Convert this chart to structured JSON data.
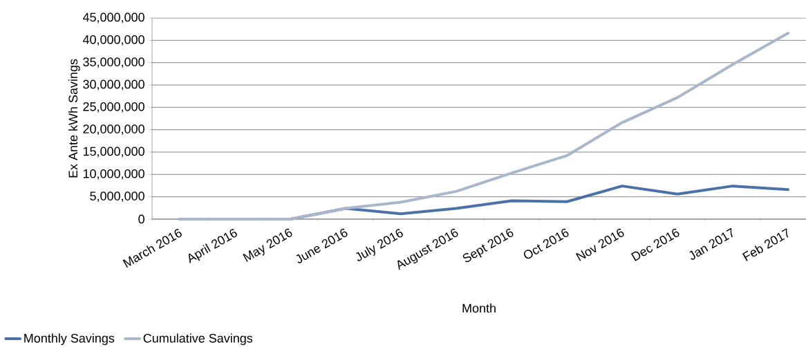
{
  "chart_data": {
    "type": "line",
    "xlabel": "Month",
    "ylabel": "Ex Ante kWh Savings",
    "categories": [
      "March 2016",
      "April 2016",
      "May 2016",
      "June 2016",
      "July 2016",
      "August 2016",
      "Sept 2016",
      "Oct 2016",
      "Nov 2016",
      "Dec 2016",
      "Jan 2017",
      "Feb 2017"
    ],
    "series": [
      {
        "name": "Monthly Savings",
        "color": "#4a72a8",
        "values": [
          0,
          0,
          0,
          2400000,
          1200000,
          2400000,
          4100000,
          3900000,
          7400000,
          5600000,
          7400000,
          6600000
        ]
      },
      {
        "name": "Cumulative Savings",
        "color": "#a9b6cc",
        "values": [
          0,
          0,
          0,
          2400000,
          3800000,
          6200000,
          10300000,
          14200000,
          21600000,
          27200000,
          34600000,
          41600000
        ]
      }
    ],
    "ylim": [
      0,
      45000000
    ],
    "yticks": [
      {
        "value": 0,
        "label": "0"
      },
      {
        "value": 5000000,
        "label": "5,000,000"
      },
      {
        "value": 10000000,
        "label": "10,000,000"
      },
      {
        "value": 15000000,
        "label": "15,000,000"
      },
      {
        "value": 20000000,
        "label": "20,000,000"
      },
      {
        "value": 25000000,
        "label": "25,000,000"
      },
      {
        "value": 30000000,
        "label": "30,000,000"
      },
      {
        "value": 35000000,
        "label": "35,000,000"
      },
      {
        "value": 40000000,
        "label": "40,000,000"
      },
      {
        "value": 45000000,
        "label": "45,000,000"
      }
    ],
    "grid": "y",
    "legend": "bottom left",
    "marker": "none",
    "line_style": "solid"
  }
}
